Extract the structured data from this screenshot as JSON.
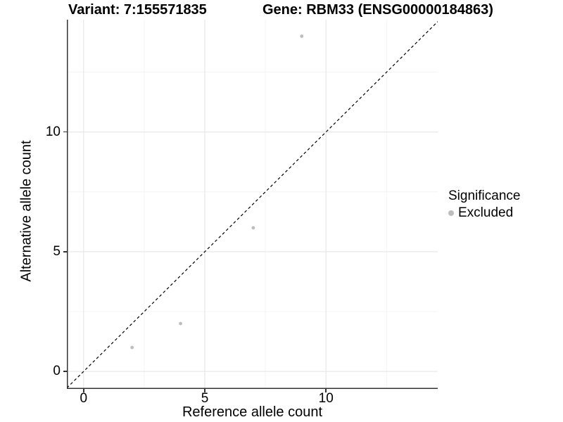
{
  "titles": {
    "variant": "Variant: 7:155571835",
    "gene": "Gene: RBM33 (ENSG00000184863)"
  },
  "axes": {
    "x": {
      "label": "Reference allele count",
      "ticks": [
        0,
        5,
        10
      ]
    },
    "y": {
      "label": "Alternative allele count",
      "ticks": [
        0,
        5,
        10
      ]
    }
  },
  "legend": {
    "title": "Significance",
    "items": [
      {
        "label": "Excluded",
        "color": "#bdbdbd"
      }
    ]
  },
  "colors": {
    "point": "#bdbdbd",
    "grid_major": "#e9e9e9",
    "grid_minor": "#f4f4f4",
    "axis": "#333333",
    "identity_line": "#000000"
  },
  "chart_data": {
    "type": "scatter",
    "title": "Variant: 7:155571835 / Gene: RBM33 (ENSG00000184863)",
    "xlabel": "Reference allele count",
    "ylabel": "Alternative allele count",
    "xlim": [
      -0.69,
      14.61
    ],
    "ylim": [
      -0.73,
      14.69
    ],
    "grid": {
      "major_x": [
        0,
        5,
        10
      ],
      "minor_x": [
        2.5,
        7.5,
        12.5
      ],
      "major_y": [
        0,
        5,
        10
      ],
      "minor_y": [
        2.5,
        7.5,
        12.5
      ]
    },
    "reference_line": {
      "type": "identity y=x",
      "style": "dashed",
      "color": "#000000"
    },
    "series": [
      {
        "name": "Excluded",
        "color": "#bdbdbd",
        "points": [
          [
            2,
            1
          ],
          [
            4,
            2
          ],
          [
            7,
            6
          ],
          [
            9,
            14
          ]
        ]
      }
    ],
    "legend_position": "right"
  }
}
